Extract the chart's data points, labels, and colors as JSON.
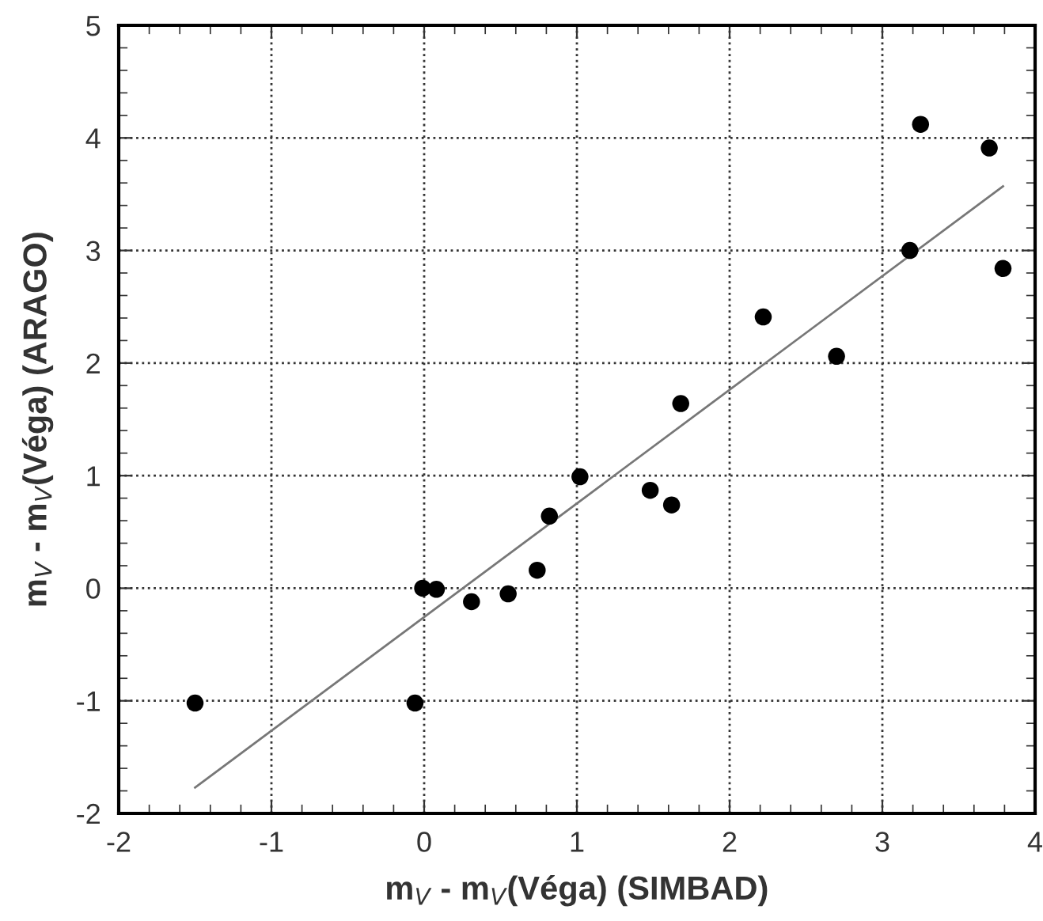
{
  "chart_data": {
    "type": "scatter",
    "xlabel": "m$_{V}$ - m$_{V}$(Véga) (SIMBAD)",
    "ylabel": "m$_{V}$ - m$_{V}$(Véga) (ARAGO)",
    "xlim": [
      -2,
      4
    ],
    "ylim": [
      -2,
      5
    ],
    "xticks": [
      -2,
      -1,
      0,
      1,
      2,
      3,
      4
    ],
    "yticks": [
      -2,
      -1,
      0,
      1,
      2,
      3,
      4,
      5
    ],
    "grid": true,
    "marker": "circle",
    "series": [
      {
        "color": "#000000",
        "x": [
          -1.5,
          -0.06,
          -0.01,
          0.08,
          0.31,
          0.55,
          0.74,
          0.82,
          1.02,
          1.48,
          1.62,
          1.68,
          2.22,
          2.7,
          3.18,
          3.25,
          3.7,
          3.79
        ],
        "values": [
          -1.02,
          -1.02,
          0.0,
          -0.01,
          -0.12,
          -0.05,
          0.16,
          0.64,
          0.99,
          0.87,
          0.74,
          1.64,
          2.41,
          2.06,
          3.0,
          4.12,
          3.91,
          2.84
        ]
      },
      {
        "type": "line",
        "color": "#777777",
        "x": [
          -1.5,
          3.79
        ],
        "values": [
          -1.77,
          3.57
        ],
        "marker": "none"
      }
    ]
  }
}
